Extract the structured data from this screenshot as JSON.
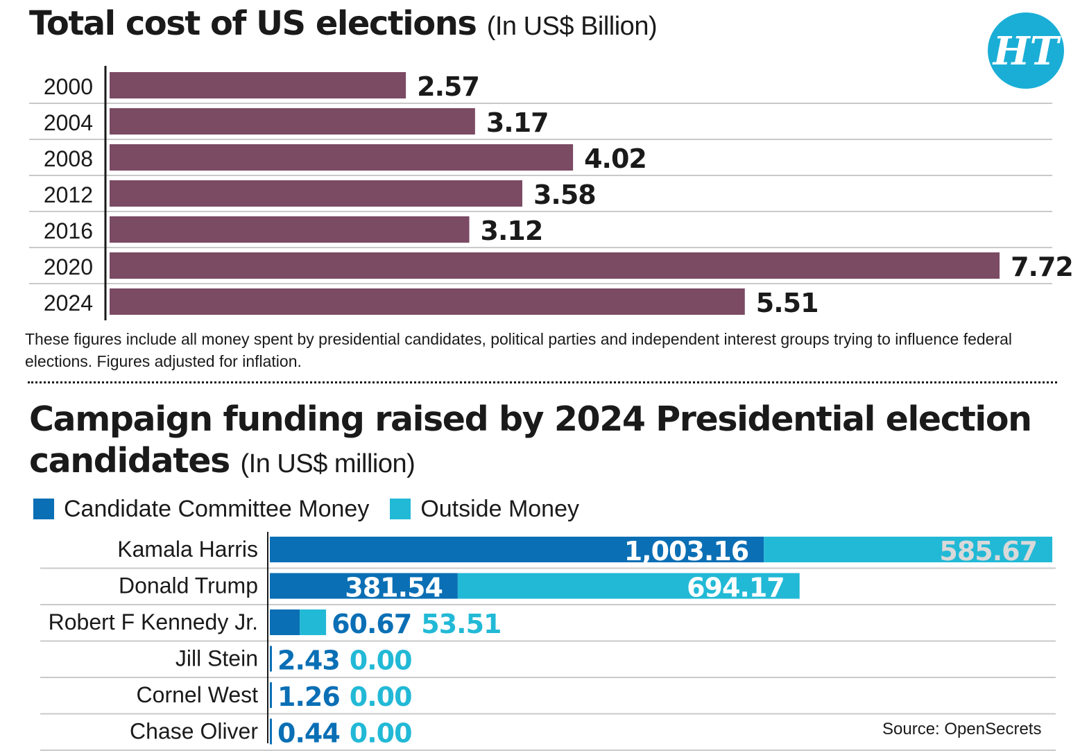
{
  "logo_text": "HT",
  "colors": {
    "cost_bar": "#7b4a63",
    "committee": "#0a6fb5",
    "outside": "#22b9d6",
    "outside_inside_label": "#d9d9d9",
    "grid": "#c9c9c9",
    "logo_bg": "#1aaed6"
  },
  "chart_data": [
    {
      "type": "bar",
      "orientation": "horizontal",
      "title": "Total cost of US elections",
      "unit": "(In US$ Billion)",
      "categories": [
        "2000",
        "2004",
        "2008",
        "2012",
        "2016",
        "2020",
        "2024"
      ],
      "values": [
        2.57,
        3.17,
        4.02,
        3.58,
        3.12,
        7.72,
        5.51
      ],
      "value_labels": [
        "2.57",
        "3.17",
        "4.02",
        "3.58",
        "3.12",
        "7.72",
        "5.51"
      ],
      "note": "These figures include all money spent by presidential candidates, political parties and independent interest groups trying to influence federal elections. Figures adjusted for inflation.",
      "grid": true
    },
    {
      "type": "bar",
      "orientation": "horizontal",
      "stacked": true,
      "title": "Campaign funding raised by 2024 Presidential election candidates",
      "unit": "(In US$ million)",
      "legend_position": "top-left",
      "categories": [
        "Kamala Harris",
        "Donald Trump",
        "Robert F Kennedy Jr.",
        "Jill Stein",
        "Cornel West",
        "Chase Oliver"
      ],
      "series": [
        {
          "name": "Candidate Committee Money",
          "values": [
            1003.16,
            381.54,
            60.67,
            2.43,
            1.26,
            0.44
          ],
          "labels": [
            "1,003.16",
            "381.54",
            "60.67",
            "2.43",
            "1.26",
            "0.44"
          ]
        },
        {
          "name": "Outside Money",
          "values": [
            585.67,
            694.17,
            53.51,
            0.0,
            0.0,
            0.0
          ],
          "labels": [
            "585.67",
            "694.17",
            "53.51",
            "0.00",
            "0.00",
            "0.00"
          ]
        }
      ],
      "source": "Source: OpenSecrets"
    }
  ]
}
